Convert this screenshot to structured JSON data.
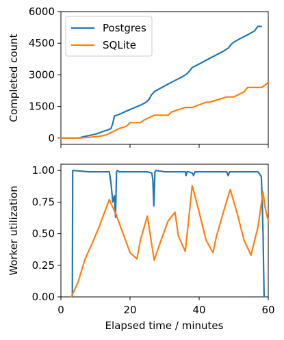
{
  "chart_data": [
    {
      "type": "line",
      "title": "",
      "xlabel": "",
      "ylabel": "Completed count",
      "xlim": [
        0,
        60
      ],
      "ylim": [
        -300,
        6000
      ],
      "x_ticks": [
        0,
        20,
        40,
        60
      ],
      "y_ticks": [
        0,
        1500,
        3000,
        4500,
        6000
      ],
      "y_tick_labels": [
        "0",
        "1500",
        "3000",
        "4500",
        "6000"
      ],
      "grid": false,
      "legend": "top-left",
      "series": [
        {
          "name": "Postgres",
          "color": "#1f77b4",
          "x": [
            0,
            5,
            7,
            10,
            12,
            13.5,
            14.5,
            15,
            15.5,
            17,
            19,
            21,
            23,
            24.5,
            25.5,
            26.2,
            26.8,
            27,
            29,
            31,
            33,
            35,
            36.5,
            37.3,
            38,
            39,
            41,
            43,
            45,
            47,
            48.5,
            49.3,
            50,
            52,
            54,
            56,
            57,
            58
          ],
          "y": [
            0,
            0,
            80,
            180,
            300,
            380,
            450,
            700,
            1050,
            1130,
            1280,
            1420,
            1560,
            1680,
            1830,
            2050,
            2150,
            2200,
            2380,
            2560,
            2730,
            2900,
            3050,
            3200,
            3350,
            3430,
            3600,
            3780,
            3950,
            4120,
            4280,
            4450,
            4550,
            4730,
            4900,
            5080,
            5300,
            5300
          ]
        },
        {
          "name": "SQLite",
          "color": "#ff7f0e",
          "x": [
            0,
            5,
            8,
            11,
            13,
            15,
            17,
            19,
            20,
            23,
            24,
            27,
            28,
            31,
            32,
            36,
            38,
            42,
            43,
            48,
            50,
            53,
            54,
            58,
            59,
            60
          ],
          "y": [
            0,
            0,
            30,
            80,
            140,
            300,
            460,
            560,
            730,
            730,
            850,
            1080,
            1080,
            1080,
            1240,
            1450,
            1450,
            1700,
            1700,
            1950,
            1950,
            2190,
            2400,
            2400,
            2500,
            2650
          ]
        }
      ]
    },
    {
      "type": "line",
      "title": "",
      "xlabel": "Elapsed time / minutes",
      "ylabel": "Worker utilization",
      "xlim": [
        0,
        60
      ],
      "ylim": [
        0,
        1.05
      ],
      "x_ticks": [
        0,
        20,
        40,
        60
      ],
      "x_tick_labels": [
        "0",
        "20",
        "40",
        "60"
      ],
      "y_ticks": [
        0.0,
        0.25,
        0.5,
        0.75,
        1.0
      ],
      "y_tick_labels": [
        "0.00",
        "0.25",
        "0.50",
        "0.75",
        "1.00"
      ],
      "grid": false,
      "legend": "none",
      "series": [
        {
          "name": "Postgres",
          "color": "#1f77b4",
          "x": [
            3.3,
            3.4,
            3.6,
            8,
            14,
            14.5,
            15,
            15.5,
            15.8,
            16.1,
            16.4,
            16.8,
            20,
            25,
            26.3,
            26.6,
            26.9,
            27.2,
            27.5,
            30,
            35,
            36,
            36.2,
            36.5,
            37,
            38,
            38.4,
            38.8,
            42,
            48,
            48.4,
            48.8,
            50,
            55,
            57,
            57.6,
            58,
            58.2,
            58.5,
            58.8
          ],
          "y": [
            0,
            1.0,
            1.0,
            0.99,
            0.99,
            0.9,
            0.75,
            0.8,
            0.63,
            0.99,
            1.0,
            0.99,
            0.99,
            0.99,
            0.98,
            0.93,
            0.72,
            0.99,
            1.0,
            0.99,
            0.99,
            0.99,
            0.96,
            0.99,
            0.99,
            0.98,
            0.96,
            0.99,
            0.99,
            0.99,
            0.96,
            0.99,
            0.99,
            0.99,
            0.99,
            0.97,
            0.95,
            0.8,
            0.5,
            0.0
          ]
        },
        {
          "name": "SQLite",
          "color": "#ff7f0e",
          "x": [
            3,
            5,
            7,
            9,
            11,
            12.5,
            14,
            16,
            18,
            20,
            22,
            23,
            25,
            27,
            29,
            31,
            33,
            34,
            36,
            38,
            40,
            42,
            44,
            45,
            47,
            49,
            51,
            53,
            55,
            57,
            58.5,
            59,
            60
          ],
          "y": [
            0,
            0.12,
            0.3,
            0.42,
            0.55,
            0.66,
            0.77,
            0.65,
            0.5,
            0.35,
            0.3,
            0.45,
            0.64,
            0.29,
            0.45,
            0.6,
            0.67,
            0.48,
            0.36,
            0.88,
            0.67,
            0.45,
            0.35,
            0.48,
            0.67,
            0.85,
            0.66,
            0.45,
            0.33,
            0.55,
            0.83,
            0.72,
            0.6
          ]
        }
      ]
    }
  ]
}
